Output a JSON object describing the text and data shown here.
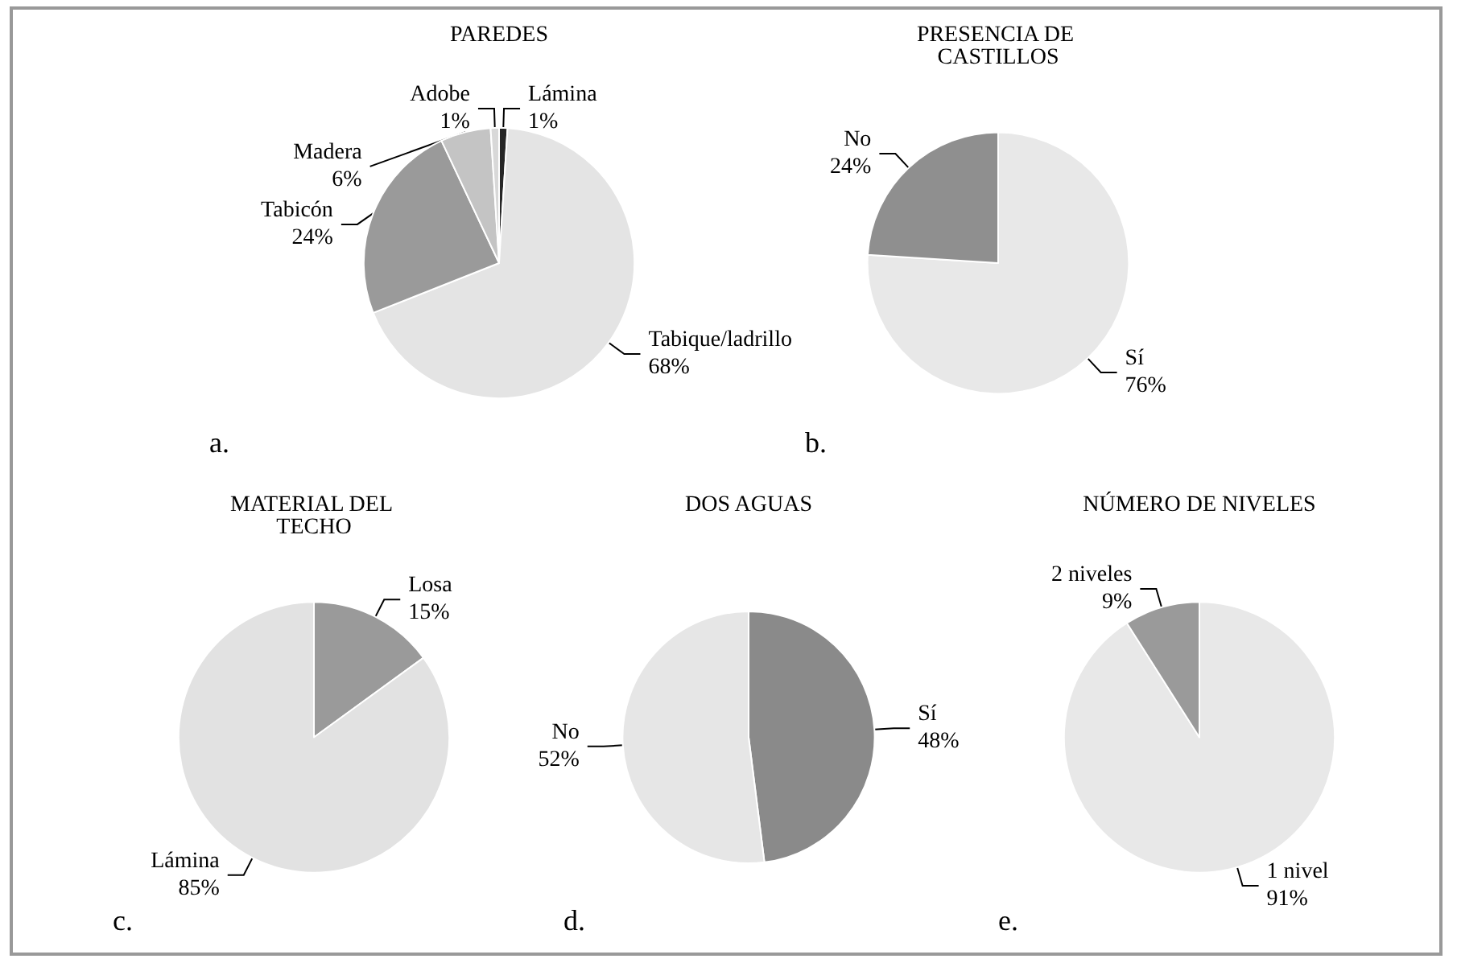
{
  "chart_data": [
    {
      "type": "pie",
      "title": "PAREDES",
      "categories": [
        "Lámina",
        "Tabique/ladrillo",
        "Tabicón",
        "Madera",
        "Adobe"
      ],
      "values": [
        1,
        68,
        24,
        6,
        1
      ],
      "value_labels": [
        "1%",
        "68%",
        "24%",
        "6%",
        "1%"
      ],
      "colors": [
        "#262626",
        "#e4e4e4",
        "#9a9a9a",
        "#c4c4c4",
        "#d8d8d8"
      ],
      "annotations": [
        "a."
      ]
    },
    {
      "type": "pie",
      "title": "PRESENCIA DE CASTILLOS",
      "categories": [
        "Sí",
        "No"
      ],
      "values": [
        76,
        24
      ],
      "value_labels": [
        "76%",
        "24%"
      ],
      "colors": [
        "#e8e8e8",
        "#8f8f8f"
      ],
      "annotations": [
        "b."
      ]
    },
    {
      "type": "pie",
      "title": "MATERIAL DEL TECHO",
      "categories": [
        "Losa",
        "Lámina"
      ],
      "values": [
        15,
        85
      ],
      "value_labels": [
        "15%",
        "85%"
      ],
      "colors": [
        "#9a9a9a",
        "#e2e2e2"
      ],
      "annotations": [
        "c."
      ]
    },
    {
      "type": "pie",
      "title": "DOS AGUAS",
      "categories": [
        "Sí",
        "No"
      ],
      "values": [
        48,
        52
      ],
      "value_labels": [
        "48%",
        "52%"
      ],
      "colors": [
        "#8a8a8a",
        "#e6e6e6"
      ],
      "annotations": [
        "d."
      ]
    },
    {
      "type": "pie",
      "title": "NÚMERO DE NIVELES",
      "categories": [
        "1 nivel",
        "2 niveles"
      ],
      "values": [
        91,
        9
      ],
      "value_labels": [
        "91%",
        "9%"
      ],
      "colors": [
        "#e8e8e8",
        "#9a9a9a"
      ],
      "annotations": [
        "e."
      ]
    }
  ]
}
